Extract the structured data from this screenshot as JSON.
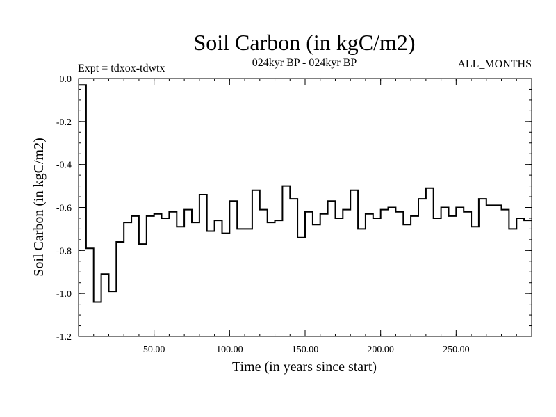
{
  "chart_data": {
    "type": "line",
    "style": "step",
    "title": "Soil Carbon (in kgC/m2)",
    "subtitle": "024kyr BP - 024kyr BP",
    "left_note": "Expt = tdxox-tdwtx",
    "right_note": "ALL_MONTHS",
    "xlabel": "Time (in years since start)",
    "ylabel": "Soil Carbon (in kgC/m2)",
    "xlim": [
      0,
      300
    ],
    "ylim": [
      -1.2,
      0.0
    ],
    "x_ticks": [
      "50.00",
      "100.00",
      "150.00",
      "200.00",
      "250.00"
    ],
    "x_tick_values": [
      50,
      100,
      150,
      200,
      250
    ],
    "y_ticks": [
      "0.0",
      "-0.2",
      "-0.4",
      "-0.6",
      "-0.8",
      "-1.0",
      "-1.2"
    ],
    "y_tick_values": [
      0.0,
      -0.2,
      -0.4,
      -0.6,
      -0.8,
      -1.0,
      -1.2
    ],
    "line_color": "#000000",
    "series": [
      {
        "x": [
          0,
          5,
          10,
          15,
          20,
          25,
          30,
          35,
          40,
          45,
          50,
          55,
          60,
          65,
          70,
          75,
          80,
          85,
          90,
          95,
          100,
          105,
          110,
          115,
          120,
          125,
          130,
          135,
          140,
          145,
          150,
          155,
          160,
          165,
          170,
          175,
          180,
          185,
          190,
          195,
          200,
          205,
          210,
          215,
          220,
          225,
          230,
          235,
          240,
          245,
          250,
          255,
          260,
          265,
          270,
          275,
          280,
          285,
          290,
          295
        ],
        "values": [
          -0.03,
          -0.79,
          -1.04,
          -0.91,
          -0.99,
          -0.76,
          -0.67,
          -0.64,
          -0.77,
          -0.64,
          -0.63,
          -0.65,
          -0.62,
          -0.69,
          -0.61,
          -0.67,
          -0.54,
          -0.71,
          -0.66,
          -0.72,
          -0.57,
          -0.7,
          -0.7,
          -0.52,
          -0.61,
          -0.67,
          -0.66,
          -0.5,
          -0.56,
          -0.74,
          -0.62,
          -0.68,
          -0.63,
          -0.57,
          -0.65,
          -0.61,
          -0.52,
          -0.7,
          -0.63,
          -0.65,
          -0.61,
          -0.6,
          -0.62,
          -0.68,
          -0.64,
          -0.56,
          -0.51,
          -0.65,
          -0.6,
          -0.64,
          -0.6,
          -0.62,
          -0.69,
          -0.56,
          -0.59,
          -0.59,
          -0.61,
          -0.7,
          -0.65,
          -0.66
        ]
      }
    ]
  }
}
